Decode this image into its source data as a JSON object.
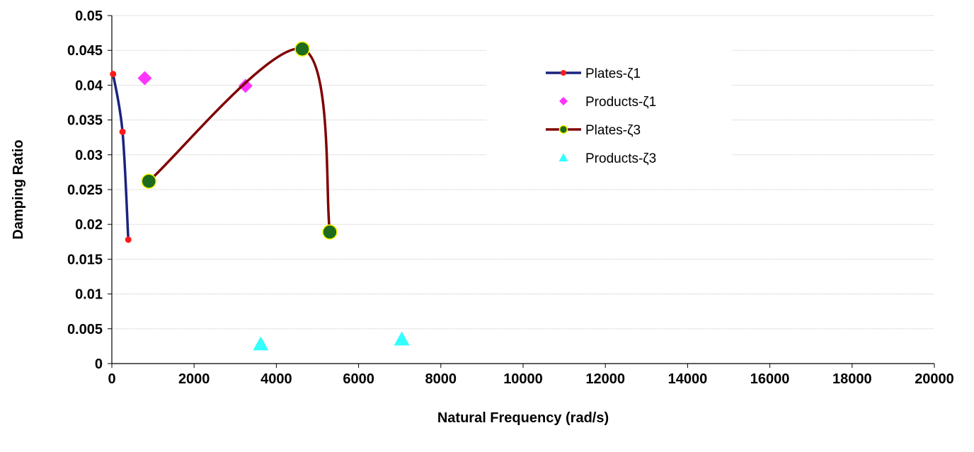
{
  "chart_data": {
    "type": "scatter",
    "title": "",
    "xlabel": "Natural Frequency (rad/s)",
    "ylabel": "Damping Ratio",
    "xlim": [
      0,
      20000
    ],
    "ylim": [
      0,
      0.05
    ],
    "x_ticks": [
      "0",
      "2000",
      "4000",
      "6000",
      "8000",
      "10000",
      "12000",
      "14000",
      "16000",
      "18000",
      "20000"
    ],
    "y_ticks": [
      "0",
      "0.005",
      "0.01",
      "0.015",
      "0.02",
      "0.025",
      "0.03",
      "0.035",
      "0.04",
      "0.045",
      "0.05"
    ],
    "grid": "horizontal",
    "legend_position": "right",
    "series": [
      {
        "name": "Plates-ζ1",
        "style": "smooth-line-with-markers",
        "line_color": "#1a237e",
        "marker": "circle-small",
        "marker_color": "#ff1a1a",
        "points": [
          [
            30,
            0.0416
          ],
          [
            260,
            0.0333
          ],
          [
            400,
            0.0178
          ]
        ]
      },
      {
        "name": "Products-ζ1",
        "style": "markers",
        "marker": "diamond",
        "marker_color": "#ff33ff",
        "points": [
          [
            800,
            0.041
          ],
          [
            3250,
            0.0399
          ]
        ]
      },
      {
        "name": "Plates-ζ3",
        "style": "smooth-line-with-markers",
        "line_color": "#800000",
        "marker": "circle-large",
        "marker_color": "#1e6b1e",
        "marker_edge": "#ffff00",
        "points": [
          [
            900,
            0.0262
          ],
          [
            4630,
            0.0452
          ],
          [
            5300,
            0.0189
          ]
        ]
      },
      {
        "name": "Products-ζ3",
        "style": "markers",
        "marker": "triangle",
        "marker_color": "#33ffff",
        "points": [
          [
            3620,
            0.0028
          ],
          [
            7050,
            0.0035
          ]
        ]
      }
    ]
  }
}
